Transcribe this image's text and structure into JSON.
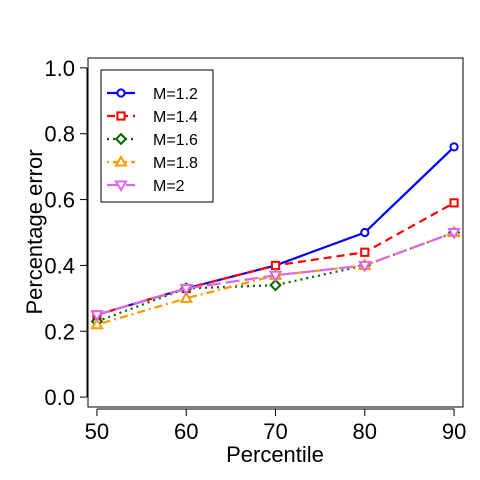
{
  "chart_data": {
    "type": "line",
    "title": "",
    "xlabel": "Percentile",
    "ylabel": "Percentage error",
    "x": [
      50,
      60,
      70,
      80,
      90
    ],
    "x_ticks": [
      50,
      60,
      70,
      80,
      90
    ],
    "y_ticks": [
      0.0,
      0.2,
      0.4,
      0.6,
      0.8,
      1.0
    ],
    "y_tick_labels": [
      "0.0",
      "0.2",
      "0.4",
      "0.6",
      "0.8",
      "1.0"
    ],
    "xlim": [
      49,
      91
    ],
    "ylim": [
      -0.03,
      1.03
    ],
    "grid": false,
    "legend_position": "top-left",
    "series": [
      {
        "name": "M=1.2",
        "values": [
          0.25,
          0.33,
          0.4,
          0.5,
          0.76
        ],
        "color": "#0000ff",
        "marker": "circle",
        "line_style": "solid"
      },
      {
        "name": "M=1.4",
        "values": [
          0.25,
          0.33,
          0.4,
          0.44,
          0.59
        ],
        "color": "#ff0000",
        "marker": "square",
        "line_style": "dashed"
      },
      {
        "name": "M=1.6",
        "values": [
          0.23,
          0.33,
          0.34,
          0.4,
          0.5
        ],
        "color": "#006400",
        "marker": "diamond",
        "line_style": "dotted"
      },
      {
        "name": "M=1.8",
        "values": [
          0.22,
          0.3,
          0.37,
          0.4,
          0.5
        ],
        "color": "#ff9900",
        "marker": "triangle-up",
        "line_style": "dotdash"
      },
      {
        "name": "M=2",
        "values": [
          0.25,
          0.33,
          0.37,
          0.4,
          0.5
        ],
        "color": "#dd66ee",
        "marker": "triangle-down",
        "line_style": "longdash"
      }
    ]
  }
}
